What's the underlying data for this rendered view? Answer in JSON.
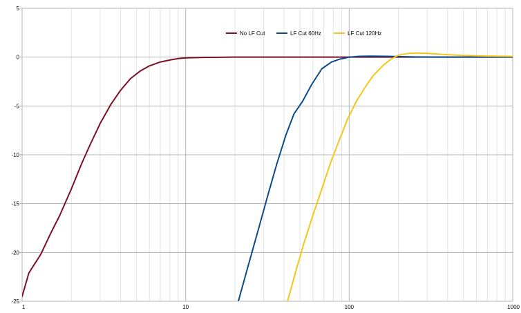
{
  "chart_data": {
    "type": "line",
    "title": "",
    "xlabel": "",
    "ylabel": "",
    "x_scale": "log",
    "xlim": [
      1,
      1000
    ],
    "ylim": [
      -25,
      5
    ],
    "grid": true,
    "legend_position": "top-center",
    "x_ticks": [
      "1",
      "10",
      "100",
      "1000"
    ],
    "y_ticks": [
      "5",
      "0",
      "-5",
      "-10",
      "-15",
      "-20",
      "-25"
    ],
    "series": [
      {
        "name": "No LF Cut",
        "color": "#7b0f24",
        "points": [
          [
            1,
            -24.5
          ],
          [
            1.1,
            -22.1
          ],
          [
            1.3,
            -20.2
          ],
          [
            1.5,
            -18
          ],
          [
            1.7,
            -16.2
          ],
          [
            2,
            -13.5
          ],
          [
            2.3,
            -11
          ],
          [
            2.6,
            -9
          ],
          [
            3,
            -6.8
          ],
          [
            3.5,
            -4.8
          ],
          [
            4,
            -3.4
          ],
          [
            4.6,
            -2.2
          ],
          [
            5.3,
            -1.4
          ],
          [
            6,
            -0.9
          ],
          [
            7,
            -0.5
          ],
          [
            8,
            -0.3
          ],
          [
            9,
            -0.15
          ],
          [
            10,
            -0.08
          ],
          [
            13,
            -0.03
          ],
          [
            20,
            0
          ],
          [
            100,
            0
          ],
          [
            1000,
            0
          ]
        ]
      },
      {
        "name": "LF Cut 60Hz",
        "color": "#0b4a8a",
        "points": [
          [
            21,
            -25
          ],
          [
            24,
            -21.5
          ],
          [
            28,
            -17.5
          ],
          [
            32,
            -14
          ],
          [
            36,
            -11
          ],
          [
            41,
            -8
          ],
          [
            46,
            -5.8
          ],
          [
            52,
            -4.5
          ],
          [
            59,
            -2.8
          ],
          [
            68,
            -1.2
          ],
          [
            78,
            -0.5
          ],
          [
            88,
            -0.2
          ],
          [
            100,
            0
          ],
          [
            115,
            0.08
          ],
          [
            135,
            0.1
          ],
          [
            170,
            0.08
          ],
          [
            250,
            0.02
          ],
          [
            400,
            0
          ],
          [
            1000,
            0
          ]
        ]
      },
      {
        "name": "LF Cut 120Hz",
        "color": "#f5c518",
        "points": [
          [
            42,
            -25
          ],
          [
            47,
            -22
          ],
          [
            53,
            -19
          ],
          [
            60,
            -16.2
          ],
          [
            68,
            -13.5
          ],
          [
            77,
            -10.8
          ],
          [
            87,
            -8.5
          ],
          [
            98,
            -6.3
          ],
          [
            110,
            -4.6
          ],
          [
            125,
            -3.1
          ],
          [
            140,
            -1.9
          ],
          [
            160,
            -0.9
          ],
          [
            180,
            -0.2
          ],
          [
            200,
            0.2
          ],
          [
            230,
            0.38
          ],
          [
            260,
            0.42
          ],
          [
            300,
            0.38
          ],
          [
            400,
            0.25
          ],
          [
            500,
            0.17
          ],
          [
            700,
            0.1
          ],
          [
            1000,
            0.07
          ]
        ]
      }
    ]
  }
}
